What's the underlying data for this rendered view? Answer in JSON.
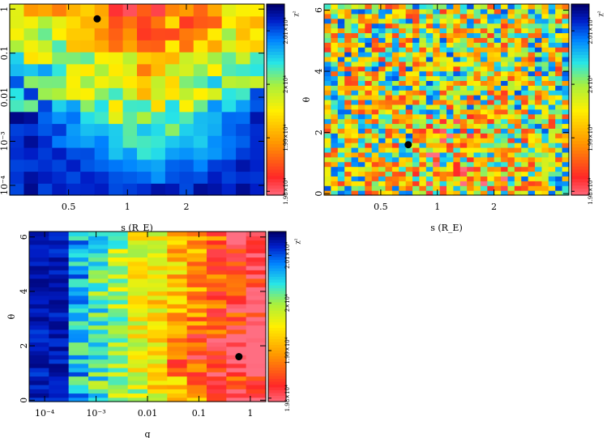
{
  "chart_data": [
    {
      "type": "heatmap",
      "xlabel": "s (R_E)",
      "ylabel": "q",
      "xscale": "log",
      "yscale": "log",
      "xlim": [
        0.25,
        5.0
      ],
      "ylim": [
        6e-05,
        1.3
      ],
      "xticks": [
        {
          "v": 0.5,
          "label": "0.5"
        },
        {
          "v": 1,
          "label": "1"
        },
        {
          "v": 2,
          "label": "2"
        }
      ],
      "yticks": [
        {
          "v": 0.0001,
          "label": "10⁻⁴"
        },
        {
          "v": 0.001,
          "label": "10⁻³"
        },
        {
          "v": 0.01,
          "label": "0.01"
        },
        {
          "v": 0.1,
          "label": "0.1"
        },
        {
          "v": 1,
          "label": "1"
        }
      ],
      "nx": 18,
      "ny": 16,
      "best_fit": {
        "x": 0.7,
        "y": 0.6
      },
      "colorbar": {
        "label": "χ²",
        "ticks": [
          "1.98×10⁴",
          "1.99×10⁴",
          "2×10⁴",
          "2.01×10⁴"
        ]
      }
    },
    {
      "type": "heatmap",
      "xlabel": "s (R_E)",
      "ylabel": "θ",
      "xscale": "log",
      "yscale": "linear",
      "xlim": [
        0.25,
        5.0
      ],
      "ylim": [
        -0.05,
        6.2
      ],
      "xticks": [
        {
          "v": 0.5,
          "label": "0.5"
        },
        {
          "v": 1,
          "label": "1"
        },
        {
          "v": 2,
          "label": "2"
        }
      ],
      "yticks": [
        {
          "v": 0,
          "label": "0"
        },
        {
          "v": 2,
          "label": "2"
        },
        {
          "v": 4,
          "label": "4"
        },
        {
          "v": 6,
          "label": "6"
        }
      ],
      "nx": 36,
      "ny": 40,
      "best_fit": {
        "x": 0.7,
        "y": 1.6
      },
      "colorbar": {
        "label": "χ²",
        "ticks": [
          "1.98×10⁴",
          "1.99×10⁴",
          "2×10⁴",
          "2.01×10⁴"
        ]
      }
    },
    {
      "type": "heatmap",
      "xlabel": "q",
      "ylabel": "θ",
      "xscale": "log",
      "yscale": "linear",
      "xlim": [
        5e-05,
        2.0
      ],
      "ylim": [
        -0.05,
        6.2
      ],
      "xticks": [
        {
          "v": 0.0001,
          "label": "10⁻⁴"
        },
        {
          "v": 0.001,
          "label": "10⁻³"
        },
        {
          "v": 0.01,
          "label": "0.01"
        },
        {
          "v": 0.1,
          "label": "0.1"
        },
        {
          "v": 1,
          "label": "1"
        }
      ],
      "yticks": [
        {
          "v": 0,
          "label": "0"
        },
        {
          "v": 2,
          "label": "2"
        },
        {
          "v": 4,
          "label": "4"
        },
        {
          "v": 6,
          "label": "6"
        }
      ],
      "nx": 12,
      "ny": 40,
      "best_fit": {
        "x": 0.6,
        "y": 1.6
      },
      "colorbar": {
        "label": "χ²",
        "ticks": [
          "1.98×10⁴",
          "1.99×10⁴",
          "2×10⁴",
          "2.01×10⁴"
        ]
      }
    }
  ]
}
